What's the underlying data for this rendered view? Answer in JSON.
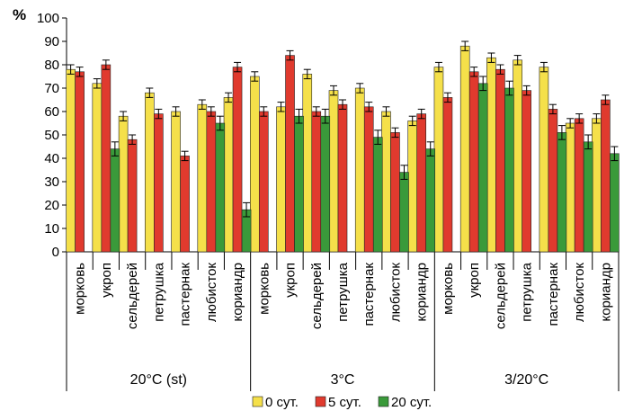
{
  "chart_data": {
    "type": "bar",
    "ylabel": "%",
    "ylim": [
      0,
      100
    ],
    "ytick_step": 10,
    "grid": false,
    "error_bars": true,
    "legend_position": "bottom-center",
    "groups": [
      "20°C (st)",
      "3°C",
      "3/20°C"
    ],
    "categories": [
      "морковь",
      "укроп",
      "сельдерей",
      "петрушка",
      "пастернак",
      "любисток",
      "кориандр"
    ],
    "series": [
      {
        "name": "0 сут.",
        "color": "#f5e04a",
        "values": [
          [
            78,
            72,
            58,
            68,
            60,
            63,
            66
          ],
          [
            75,
            62,
            76,
            69,
            70,
            60,
            56
          ],
          [
            79,
            88,
            83,
            82,
            79,
            55,
            57
          ]
        ],
        "errors": [
          [
            2,
            2,
            2,
            2,
            2,
            2,
            2
          ],
          [
            2,
            2,
            2,
            2,
            2,
            2,
            2
          ],
          [
            2,
            2,
            2,
            2,
            2,
            2,
            2
          ]
        ]
      },
      {
        "name": "5 сут.",
        "color": "#e03a2e",
        "values": [
          [
            77,
            80,
            48,
            59,
            41,
            60,
            79
          ],
          [
            60,
            84,
            60,
            63,
            62,
            51,
            59
          ],
          [
            66,
            77,
            78,
            69,
            61,
            57,
            65
          ]
        ],
        "errors": [
          [
            2,
            2,
            2,
            2,
            2,
            2,
            2
          ],
          [
            2,
            2,
            2,
            2,
            2,
            2,
            2
          ],
          [
            2,
            2,
            2,
            2,
            2,
            2,
            2
          ]
        ]
      },
      {
        "name": "20 сут.",
        "color": "#3a9a3a",
        "values": [
          [
            null,
            44,
            null,
            null,
            null,
            55,
            18
          ],
          [
            null,
            58,
            58,
            null,
            49,
            34,
            44
          ],
          [
            null,
            72,
            70,
            null,
            51,
            47,
            42
          ]
        ],
        "errors": [
          [
            null,
            3,
            null,
            null,
            null,
            3,
            3
          ],
          [
            null,
            3,
            3,
            null,
            3,
            3,
            3
          ],
          [
            null,
            3,
            3,
            null,
            3,
            3,
            3
          ]
        ]
      }
    ]
  }
}
